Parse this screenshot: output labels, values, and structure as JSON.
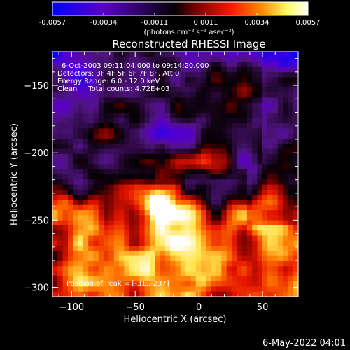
{
  "footer": {
    "timestamp": "6-May-2022 04:01"
  },
  "colorbar": {
    "ticks": [
      "-0.0057",
      "-0.0034",
      "-0.0011",
      "0.0011",
      "0.0034",
      "0.0057"
    ],
    "unit": "(photons cm⁻² s⁻¹ asec⁻²)",
    "range": [
      -0.0057,
      0.0057
    ],
    "colors": [
      "#0000ff",
      "#5a00c8",
      "#000000",
      "#8b0000",
      "#ff2000",
      "#ff8c00",
      "#ffff80",
      "#ffffff"
    ]
  },
  "chart_data": {
    "type": "heatmap",
    "title": "Reconstructed RHESSI Image",
    "xlabel": "Heliocentric X (arcsec)",
    "ylabel": "Heliocentric Y (arcsec)",
    "xlim": [
      -115,
      78
    ],
    "ylim": [
      -307,
      -125
    ],
    "xticks": [
      -100,
      -50,
      0,
      50
    ],
    "yticks": [
      -150,
      -200,
      -250,
      -300
    ],
    "annotations": {
      "time_range": "6-Oct-2003 09:11:04.000 to 09:14:20.000",
      "detectors": "Detectors: 3F 4F 5F 6F 7F 8F, Att 0",
      "energy": "Energy Range: 6.0 - 12.0 keV",
      "method": "Clean     Total counts: 4.72E+03",
      "peak": "Position of Peak = [-31.,-237]"
    },
    "peak": {
      "x": -31,
      "y": -237
    }
  }
}
